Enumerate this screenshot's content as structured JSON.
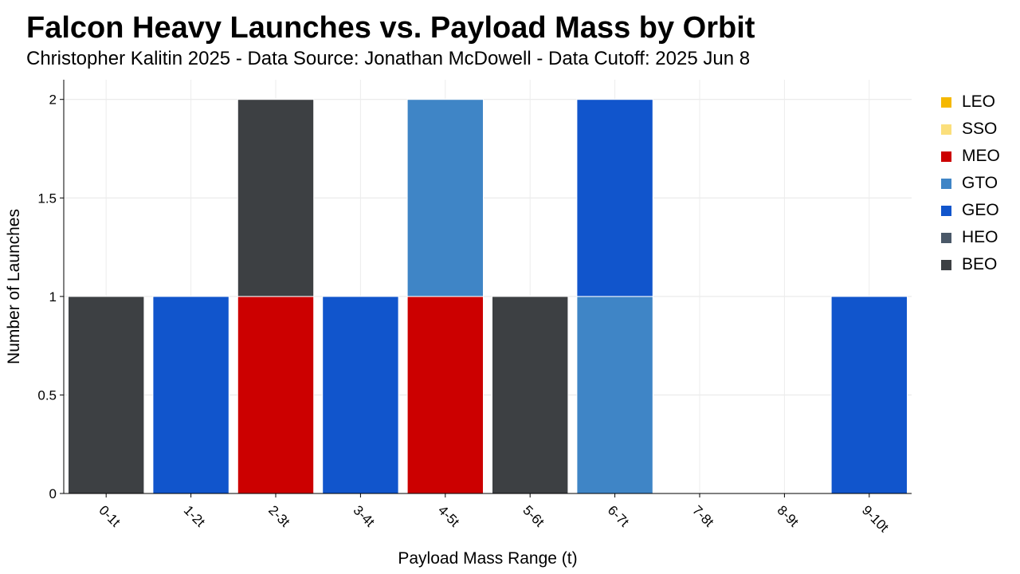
{
  "header": {
    "title": "Falcon Heavy Launches vs. Payload Mass by Orbit",
    "subtitle": "Christopher Kalitin 2025 - Data Source: Jonathan McDowell - Data Cutoff: 2025 Jun 8"
  },
  "chart_data": {
    "type": "bar",
    "stacked": true,
    "title": "Falcon Heavy Launches vs. Payload Mass by Orbit",
    "subtitle": "Christopher Kalitin 2025 - Data Source: Jonathan McDowell - Data Cutoff: 2025 Jun 8",
    "xlabel": "Payload Mass Range (t)",
    "ylabel": "Number of Launches",
    "categories": [
      "0-1t",
      "1-2t",
      "2-3t",
      "3-4t",
      "4-5t",
      "5-6t",
      "6-7t",
      "7-8t",
      "8-9t",
      "9-10t"
    ],
    "ylim": [
      0,
      2.1
    ],
    "yticks": [
      0,
      0.5,
      1,
      1.5,
      2
    ],
    "ytick_labels": [
      "0",
      "0.5",
      "1",
      "1.5",
      "2"
    ],
    "grid": true,
    "legend_position": "right",
    "series": [
      {
        "name": "LEO",
        "color": "#f5b800",
        "values": [
          0,
          0,
          0,
          0,
          0,
          0,
          0,
          0,
          0,
          0
        ]
      },
      {
        "name": "SSO",
        "color": "#fbdf7c",
        "values": [
          0,
          0,
          0,
          0,
          0,
          0,
          0,
          0,
          0,
          0
        ]
      },
      {
        "name": "MEO",
        "color": "#cc0000",
        "values": [
          0,
          0,
          1,
          0,
          1,
          0,
          0,
          0,
          0,
          0
        ]
      },
      {
        "name": "GTO",
        "color": "#3f85c6",
        "values": [
          0,
          0,
          0,
          0,
          1,
          0,
          1,
          0,
          0,
          0
        ]
      },
      {
        "name": "GEO",
        "color": "#1155cc",
        "values": [
          0,
          1,
          0,
          1,
          0,
          0,
          1,
          0,
          0,
          1
        ]
      },
      {
        "name": "HEO",
        "color": "#4a5868",
        "values": [
          0,
          0,
          0,
          0,
          0,
          0,
          0,
          0,
          0,
          0
        ]
      },
      {
        "name": "BEO",
        "color": "#3d4043",
        "values": [
          1,
          0,
          1,
          0,
          0,
          1,
          0,
          0,
          0,
          0
        ]
      }
    ]
  }
}
